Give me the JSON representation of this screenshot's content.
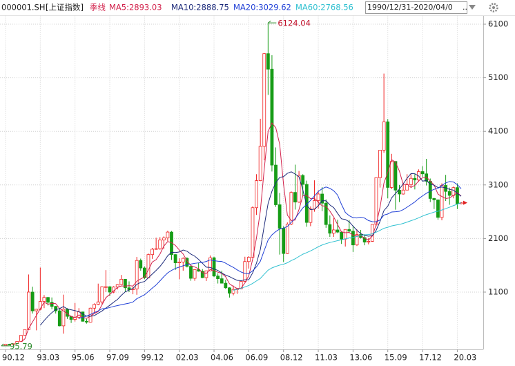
{
  "chart_data": {
    "type": "candlestick",
    "title": "000001.SH",
    "subtitle": "[上证指数]",
    "period": "季线",
    "date_range": "1990/12/31-2020/04/0",
    "max_label": "6124.04",
    "min_label": "95.79",
    "up_color": "#f02020",
    "down_color": "#169c16",
    "grid": true,
    "ylim": [
      30,
      6260
    ],
    "yticks": [
      1100,
      2100,
      3100,
      4100,
      5100,
      6100
    ],
    "categories": [
      "90.12",
      null,
      null,
      null,
      null,
      null,
      null,
      null,
      null,
      "93.03",
      null,
      null,
      null,
      null,
      null,
      null,
      null,
      null,
      "95.06",
      null,
      null,
      null,
      null,
      null,
      null,
      null,
      null,
      "97.09",
      null,
      null,
      null,
      null,
      null,
      null,
      null,
      null,
      "99.12",
      null,
      null,
      null,
      null,
      null,
      null,
      null,
      null,
      "02.03",
      null,
      null,
      null,
      null,
      null,
      null,
      null,
      null,
      "04.06",
      null,
      null,
      null,
      null,
      null,
      null,
      null,
      null,
      "06.09",
      null,
      null,
      null,
      null,
      null,
      null,
      null,
      null,
      "08.12",
      null,
      null,
      null,
      null,
      null,
      null,
      null,
      null,
      "11.03",
      null,
      null,
      null,
      null,
      null,
      null,
      null,
      null,
      "13.06",
      null,
      null,
      null,
      null,
      null,
      null,
      null,
      null,
      "15.09",
      null,
      null,
      null,
      null,
      null,
      null,
      null,
      null,
      "17.12",
      null,
      null,
      null,
      null,
      null,
      null,
      null,
      null,
      "20.03",
      null
    ],
    "open": [
      100,
      127,
      120,
      137,
      180,
      293,
      400,
      1100,
      750,
      780,
      925,
      1000,
      910,
      833,
      750,
      470,
      780,
      647,
      590,
      630,
      730,
      555,
      540,
      800,
      870,
      917,
      1200,
      1200,
      1100,
      1194,
      1240,
      1340,
      1180,
      1146,
      1160,
      1690,
      1550,
      1367,
      1800,
      1900,
      1910,
      2073,
      2110,
      2220,
      1800,
      1646,
      1660,
      1730,
      1580,
      1357,
      1520,
      1490,
      1370,
      1497,
      1740,
      1400,
      1350,
      1266,
      1180,
      1080,
      1150,
      1161,
      1300,
      1670,
      1750,
      2675,
      3180,
      3820,
      5550,
      5260,
      3470,
      2730,
      2290,
      1820,
      2370,
      2960,
      2780,
      3277,
      3110,
      2400,
      2650,
      2808,
      2930,
      2760,
      2360,
      2199,
      2260,
      2220,
      2090,
      2269,
      2237,
      1980,
      2175,
      2116,
      2033,
      2048,
      2364,
      3235,
      3748,
      4277,
      3053,
      3539,
      3003,
      2930,
      3004,
      3104,
      3223,
      3192,
      3349,
      3307,
      3169,
      2847,
      2821,
      2494,
      3091,
      2979,
      2905,
      3050,
      2750
    ],
    "high": [
      127,
      135,
      137,
      180,
      292,
      401,
      1429,
      1200,
      790,
      1558,
      1044,
      1010,
      1000,
      840,
      790,
      1052,
      800,
      650,
      897,
      800,
      735,
      600,
      810,
      890,
      1258,
      1210,
      1510,
      1210,
      1210,
      1250,
      1420,
      1345,
      1300,
      1200,
      1756,
      1725,
      1580,
      1820,
      1925,
      2115,
      2125,
      2140,
      2245,
      2240,
      1810,
      1730,
      1748,
      1750,
      1600,
      1530,
      1650,
      1530,
      1500,
      1783,
      1760,
      1450,
      1500,
      1330,
      1190,
      1220,
      1170,
      1310,
      1760,
      1770,
      2700,
      3300,
      4335,
      5560,
      6124.04,
      5520,
      3800,
      2950,
      2330,
      2400,
      2980,
      3478,
      3360,
      3300,
      3180,
      2700,
      3186,
      3000,
      3060,
      2830,
      2530,
      2480,
      2450,
      2230,
      2270,
      2444,
      2330,
      2270,
      2260,
      2180,
      2110,
      2370,
      3240,
      3750,
      5178,
      4330,
      3680,
      3540,
      3100,
      3140,
      3300,
      3300,
      3300,
      3390,
      3450,
      3587,
      3220,
      2860,
      2830,
      3130,
      3288,
      3050,
      3070,
      3130,
      2780
    ],
    "low": [
      95.79,
      105,
      104,
      136,
      179,
      290,
      390,
      700,
      386,
      760,
      800,
      850,
      780,
      700,
      460,
      325,
      600,
      524,
      550,
      600,
      550,
      512,
      535,
      720,
      855,
      870,
      1100,
      1025,
      1080,
      1150,
      1230,
      1100,
      1100,
      1060,
      1050,
      1500,
      1341,
      1361,
      1720,
      1890,
      1890,
      1900,
      2050,
      1700,
      1514,
      1339,
      1500,
      1560,
      1311,
      1311,
      1480,
      1360,
      1307,
      1490,
      1380,
      1260,
      1260,
      1160,
      998,
      1040,
      1067,
      1160,
      1290,
      1540,
      1740,
      2540,
      3170,
      3560,
      4780,
      3350,
      2690,
      1800,
      1664,
      1810,
      2350,
      2640,
      2760,
      2890,
      2320,
      2330,
      2600,
      2660,
      2610,
      2300,
      2130,
      2130,
      2200,
      1999,
      1950,
      2200,
      1849,
      1960,
      2100,
      1974,
      1990,
      2040,
      2330,
      3050,
      3700,
      2850,
      3020,
      2638,
      2780,
      2920,
      3000,
      3044,
      3016,
      3160,
      3250,
      3090,
      2780,
      2650,
      2450,
      2440,
      2800,
      2730,
      2850,
      2650,
      2740
    ],
    "close": [
      127,
      120,
      137,
      180,
      292,
      400,
      1100,
      750,
      780,
      925,
      1000,
      910,
      833,
      750,
      470,
      780,
      647,
      590,
      630,
      730,
      555,
      540,
      800,
      870,
      917,
      1200,
      1200,
      1100,
      1194,
      1240,
      1340,
      1180,
      1146,
      1160,
      1690,
      1550,
      1367,
      1800,
      1900,
      1910,
      2073,
      2110,
      2220,
      1800,
      1646,
      1660,
      1730,
      1580,
      1357,
      1520,
      1490,
      1370,
      1497,
      1740,
      1400,
      1350,
      1266,
      1180,
      1080,
      1150,
      1161,
      1300,
      1670,
      1750,
      2675,
      3180,
      3820,
      5550,
      5260,
      3470,
      2730,
      2290,
      1820,
      2370,
      2960,
      2780,
      3277,
      3110,
      2400,
      2650,
      2808,
      2930,
      2760,
      2360,
      2199,
      2260,
      2220,
      2090,
      2269,
      2237,
      1980,
      2175,
      2116,
      2033,
      2048,
      2364,
      3235,
      3748,
      4277,
      3053,
      3539,
      3003,
      2930,
      3004,
      3104,
      3223,
      3192,
      3349,
      3307,
      3169,
      2847,
      2821,
      2494,
      3091,
      2979,
      2905,
      3050,
      2750,
      2767
    ],
    "series": [
      {
        "name": "MA5:2893.03",
        "color": "#d2204a",
        "values": [
          null,
          null,
          null,
          null,
          171,
          226,
          422,
          544,
          664,
          791,
          911,
          873,
          890,
          884,
          793,
          749,
          696,
          647,
          623,
          675,
          630,
          609,
          651,
          699,
          736,
          865,
          997,
          1057,
          1122,
          1187,
          1215,
          1211,
          1220,
          1213,
          1303,
          1345,
          1383,
          1513,
          1661,
          1705,
          1810,
          1959,
          2043,
          2023,
          1970,
          1887,
          1811,
          1683,
          1595,
          1569,
          1535,
          1463,
          1447,
          1523,
          1499,
          1471,
          1451,
          1387,
          1255,
          1205,
          1167,
          1174,
          1272,
          1406,
          1711,
          2115,
          2619,
          3395,
          4097,
          4256,
          4166,
          3860,
          3114,
          2536,
          2434,
          2444,
          2641,
          2899,
          2905,
          2843,
          2849,
          2780,
          2710,
          2702,
          2611,
          2502,
          2360,
          2226,
          2208,
          2215,
          2159,
          2150,
          2155,
          2108,
          2070,
          2147,
          2359,
          2686,
          3134,
          3335,
          3570,
          3524,
          3360,
          3106,
          3116,
          3053,
          3091,
          3174,
          3235,
          3248,
          3173,
          3099,
          2928,
          2884,
          2846,
          2858,
          2904,
          2955,
          2893.03
        ]
      },
      {
        "name": "MA10:2888.75",
        "color": "#1c2a7a",
        "values": [
          null,
          null,
          null,
          null,
          null,
          null,
          null,
          null,
          null,
          481,
          569,
          648,
          717,
          774,
          792,
          830,
          785,
          769,
          754,
          734,
          690,
          653,
          649,
          661,
          706,
          748,
          803,
          854,
          911,
          962,
          1040,
          1104,
          1139,
          1168,
          1245,
          1280,
          1297,
          1367,
          1437,
          1504,
          1578,
          1671,
          1778,
          1842,
          1838,
          1849,
          1885,
          1863,
          1809,
          1770,
          1711,
          1637,
          1565,
          1559,
          1534,
          1503,
          1457,
          1417,
          1389,
          1352,
          1319,
          1313,
          1330,
          1331,
          1458,
          1641,
          1897,
          2334,
          2752,
          2984,
          3141,
          3240,
          3255,
          3317,
          3345,
          3305,
          3251,
          3007,
          2721,
          2639,
          2647,
          2711,
          2805,
          2804,
          2727,
          2676,
          2570,
          2468,
          2455,
          2413,
          2331,
          2255,
          2191,
          2158,
          2143,
          2153,
          2255,
          2421,
          2621,
          2703,
          2859,
          2942,
          3023,
          3120,
          3226,
          3312,
          3308,
          3267,
          3171,
          3182,
          3113,
          3095,
          3051,
          3060,
          3047,
          3016,
          3002,
          2942,
          2888.75
        ]
      },
      {
        "name": "MA20:3029.62",
        "color": "#1f3fd6",
        "values": [
          null,
          null,
          null,
          null,
          null,
          null,
          null,
          null,
          null,
          null,
          null,
          null,
          null,
          null,
          null,
          null,
          null,
          null,
          null,
          608,
          630,
          651,
          683,
          718,
          749,
          789,
          794,
          812,
          833,
          848,
          865,
          879,
          894,
          915,
          976,
          1014,
          1050,
          1111,
          1174,
          1233,
          1309,
          1388,
          1459,
          1505,
          1542,
          1565,
          1591,
          1615,
          1623,
          1637,
          1645,
          1654,
          1672,
          1701,
          1686,
          1676,
          1671,
          1640,
          1599,
          1561,
          1515,
          1475,
          1448,
          1445,
          1496,
          1572,
          1677,
          1876,
          2071,
          2168,
          2230,
          2277,
          2293,
          2324,
          2402,
          2473,
          2574,
          2671,
          2737,
          2812,
          2894,
          2976,
          3030,
          3061,
          3036,
          2991,
          2911,
          2738,
          2588,
          2526,
          2489,
          2483,
          2498,
          2481,
          2435,
          2415,
          2413,
          2445,
          2538,
          2558,
          2595,
          2599,
          2607,
          2639,
          2685,
          2733,
          2782,
          2844,
          2896,
          2943,
          2986,
          3019,
          3037,
          3090,
          3137,
          3164,
          3155,
          3105,
          3029.62
        ]
      },
      {
        "name": "MA60:2768.56",
        "color": "#2ec0d0",
        "values": [
          null,
          null,
          null,
          null,
          null,
          null,
          null,
          null,
          null,
          null,
          null,
          null,
          null,
          null,
          null,
          null,
          null,
          null,
          null,
          null,
          null,
          null,
          null,
          null,
          null,
          null,
          null,
          null,
          null,
          null,
          null,
          null,
          null,
          null,
          null,
          null,
          null,
          null,
          null,
          null,
          null,
          null,
          null,
          null,
          null,
          null,
          null,
          null,
          null,
          null,
          null,
          null,
          null,
          null,
          null,
          null,
          null,
          null,
          null,
          1134,
          1151,
          1171,
          1197,
          1223,
          1262,
          1309,
          1354,
          1434,
          1509,
          1551,
          1580,
          1603,
          1620,
          1647,
          1688,
          1721,
          1765,
          1807,
          1837,
          1869,
          1906,
          1946,
          1979,
          2004,
          2025,
          2043,
          2060,
          2076,
          2094,
          2110,
          2121,
          2138,
          2154,
          2169,
          2174,
          2188,
          2219,
          2252,
          2291,
          2310,
          2335,
          2350,
          2362,
          2382,
          2406,
          2432,
          2457,
          2486,
          2518,
          2546,
          2568,
          2593,
          2609,
          2632,
          2658,
          2684,
          2714,
          2740,
          2768.56
        ]
      }
    ]
  }
}
